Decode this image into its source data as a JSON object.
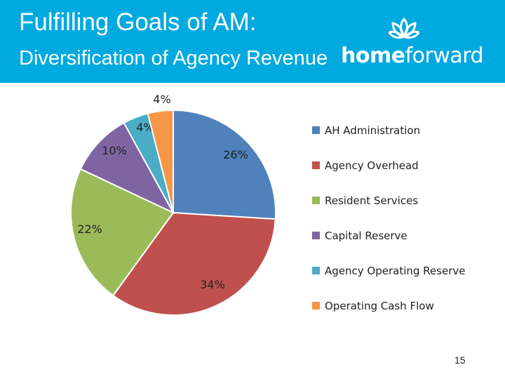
{
  "slide": {
    "title": "Fulfilling Goals of AM:",
    "subtitle": "Diversification of Agency Revenue",
    "page_number": "15"
  },
  "logo": {
    "bold": "home",
    "light": "forward",
    "icon": "lotus-flower-icon"
  },
  "colors": {
    "header": "#00a9df",
    "text": "#ffffff"
  },
  "chart_data": {
    "type": "pie",
    "legend_position": "right",
    "slices": [
      {
        "label": "AH Administration",
        "value": 26,
        "text": "26%",
        "color": "#4f81bd"
      },
      {
        "label": "Agency Overhead",
        "value": 34,
        "text": "34%",
        "color": "#c0504d"
      },
      {
        "label": "Resident Services",
        "value": 22,
        "text": "22%",
        "color": "#9bbb59"
      },
      {
        "label": "Capital Reserve",
        "value": 10,
        "text": "10%",
        "color": "#8064a2"
      },
      {
        "label": "Agency Operating Reserve",
        "value": 4,
        "text": "4%",
        "color": "#4bacc6"
      },
      {
        "label": "Operating Cash Flow",
        "value": 4,
        "text": "4%",
        "color": "#f79646"
      }
    ]
  }
}
